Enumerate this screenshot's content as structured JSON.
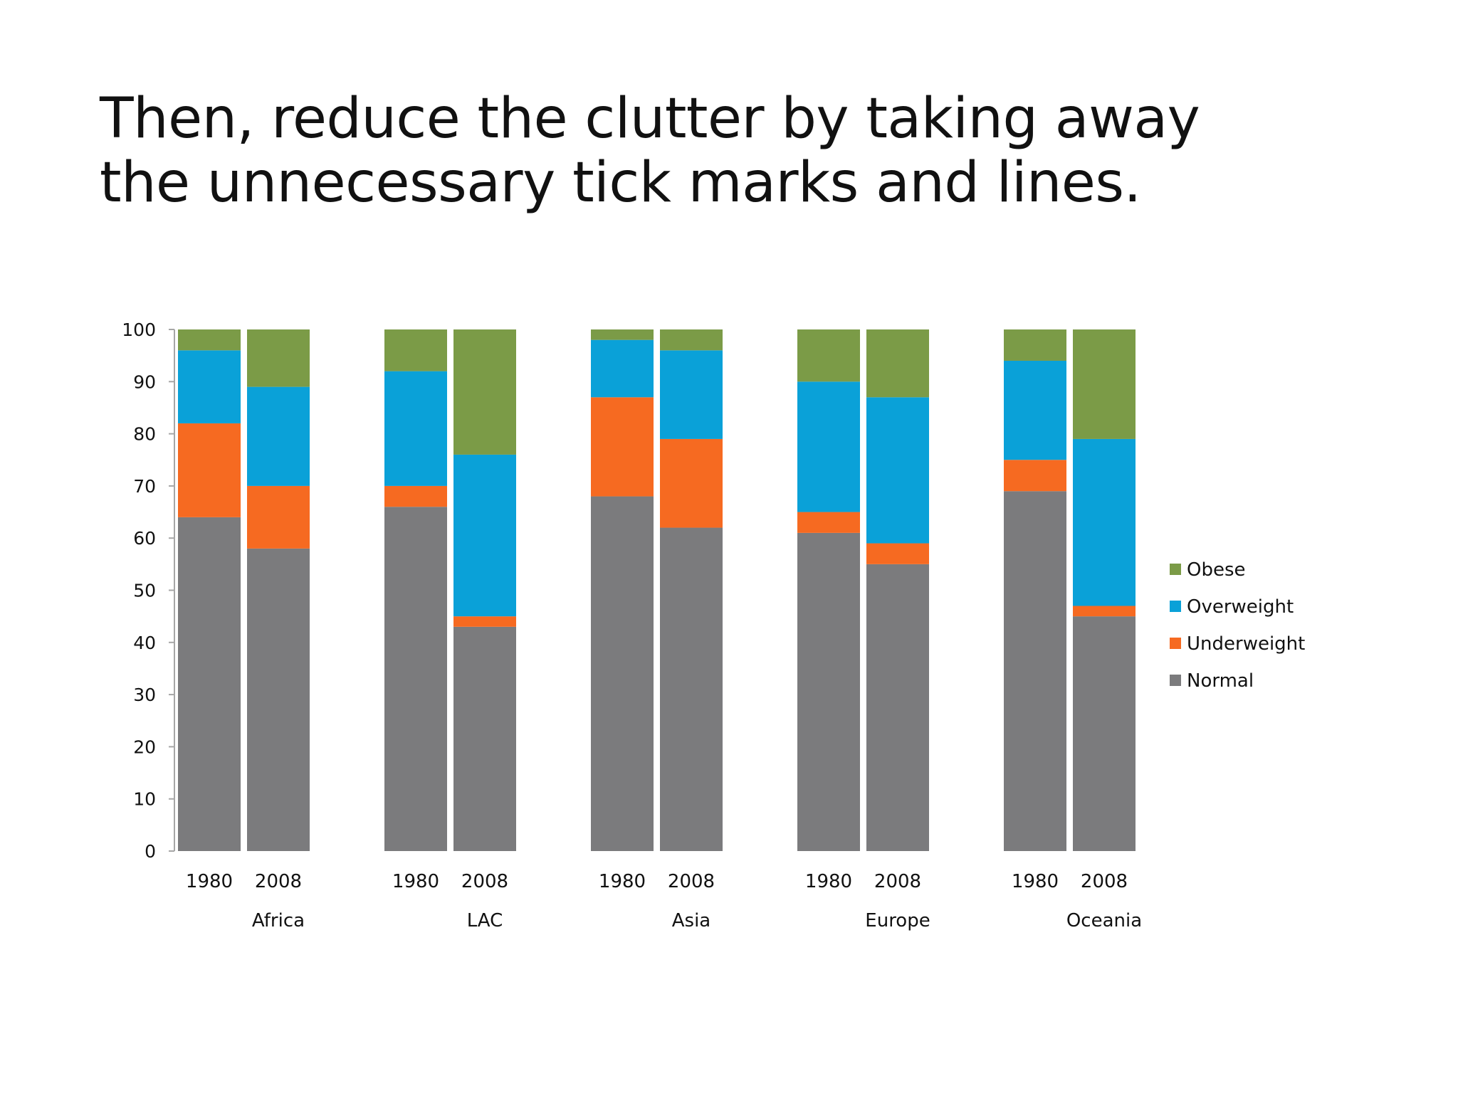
{
  "slide": {
    "title_lines": [
      "Then, reduce the clutter by taking away",
      "the unnecessary tick marks and lines."
    ]
  },
  "chart_data": {
    "type": "bar",
    "stacked": true,
    "groups": [
      "Africa",
      "LAC",
      "Asia",
      "Europe",
      "Oceania"
    ],
    "categories": [
      "1980",
      "2008"
    ],
    "ylim": [
      0,
      100
    ],
    "yticks": [
      0,
      10,
      20,
      30,
      40,
      50,
      60,
      70,
      80,
      90,
      100
    ],
    "xlabel": "",
    "ylabel": "",
    "grid": false,
    "legend_position": "right",
    "series": [
      {
        "name": "Normal",
        "color": "#7b7b7d",
        "values": [
          [
            64,
            58
          ],
          [
            66,
            43
          ],
          [
            68,
            62
          ],
          [
            61,
            55
          ],
          [
            69,
            45
          ]
        ]
      },
      {
        "name": "Underweight",
        "color": "#f66a21",
        "values": [
          [
            18,
            12
          ],
          [
            4,
            2
          ],
          [
            19,
            17
          ],
          [
            4,
            4
          ],
          [
            6,
            2
          ]
        ]
      },
      {
        "name": "Overweight",
        "color": "#0aa1d8",
        "values": [
          [
            14,
            19
          ],
          [
            22,
            31
          ],
          [
            11,
            17
          ],
          [
            25,
            28
          ],
          [
            19,
            32
          ]
        ]
      },
      {
        "name": "Obese",
        "color": "#7b9b47",
        "values": [
          [
            4,
            11
          ],
          [
            8,
            24
          ],
          [
            2,
            4
          ],
          [
            10,
            13
          ],
          [
            6,
            21
          ]
        ]
      }
    ],
    "legend_order": [
      "Obese",
      "Overweight",
      "Underweight",
      "Normal"
    ]
  }
}
